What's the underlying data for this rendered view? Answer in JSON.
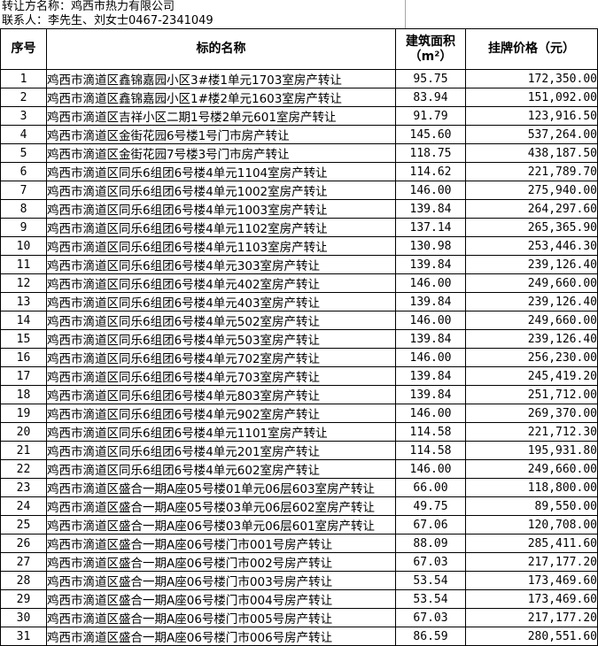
{
  "header": {
    "transferor": "转让方名称：鸡西市热力有限公司",
    "contact": "联系人：李先生、刘女士0467-2341049"
  },
  "table": {
    "headers": {
      "no": "序号",
      "name": "标的名称",
      "area_line1": "建筑面积",
      "area_line2": "（m²）",
      "price": "挂牌价格（元）"
    },
    "rows": [
      {
        "no": "1",
        "name": "鸡西市滴道区鑫锦嘉园小区3#楼1单元1703室房产转让",
        "area": "95.75",
        "price": "172,350.00"
      },
      {
        "no": "2",
        "name": "鸡西市滴道区鑫锦嘉园小区1#楼2单元1603室房产转让",
        "area": "83.94",
        "price": "151,092.00"
      },
      {
        "no": "3",
        "name": "鸡西市滴道区吉祥小区二期1号楼2单元601室房产转让",
        "area": "91.79",
        "price": "123,916.50"
      },
      {
        "no": "4",
        "name": "鸡西市滴道区金街花园6号楼1号门市房产转让",
        "area": "145.60",
        "price": "537,264.00"
      },
      {
        "no": "5",
        "name": "鸡西市滴道区金街花园7号楼3号门市房产转让",
        "area": "118.75",
        "price": "438,187.50"
      },
      {
        "no": "6",
        "name": "鸡西市滴道区同乐6组团6号楼4单元1104室房产转让",
        "area": "114.62",
        "price": "221,789.70"
      },
      {
        "no": "7",
        "name": "鸡西市滴道区同乐6组团6号楼4单元1002室房产转让",
        "area": "146.00",
        "price": "275,940.00"
      },
      {
        "no": "8",
        "name": "鸡西市滴道区同乐6组团6号楼4单元1003室房产转让",
        "area": "139.84",
        "price": "264,297.60"
      },
      {
        "no": "9",
        "name": "鸡西市滴道区同乐6组团6号楼4单元1102室房产转让",
        "area": "137.14",
        "price": "265,365.90"
      },
      {
        "no": "10",
        "name": "鸡西市滴道区同乐6组团6号楼4单元1103室房产转让",
        "area": "130.98",
        "price": "253,446.30"
      },
      {
        "no": "11",
        "name": "鸡西市滴道区同乐6组团6号楼4单元303室房产转让",
        "area": "139.84",
        "price": "239,126.40"
      },
      {
        "no": "12",
        "name": "鸡西市滴道区同乐6组团6号楼4单元402室房产转让",
        "area": "146.00",
        "price": "249,660.00"
      },
      {
        "no": "13",
        "name": "鸡西市滴道区同乐6组团6号楼4单元403室房产转让",
        "area": "139.84",
        "price": "239,126.40"
      },
      {
        "no": "14",
        "name": "鸡西市滴道区同乐6组团6号楼4单元502室房产转让",
        "area": "146.00",
        "price": "249,660.00"
      },
      {
        "no": "15",
        "name": "鸡西市滴道区同乐6组团6号楼4单元503室房产转让",
        "area": "139.84",
        "price": "239,126.40"
      },
      {
        "no": "16",
        "name": "鸡西市滴道区同乐6组团6号楼4单元702室房产转让",
        "area": "146.00",
        "price": "256,230.00"
      },
      {
        "no": "17",
        "name": "鸡西市滴道区同乐6组团6号楼4单元703室房产转让",
        "area": "139.84",
        "price": "245,419.20"
      },
      {
        "no": "18",
        "name": "鸡西市滴道区同乐6组团6号楼4单元803室房产转让",
        "area": "139.84",
        "price": "251,712.00"
      },
      {
        "no": "19",
        "name": "鸡西市滴道区同乐6组团6号楼4单元902室房产转让",
        "area": "146.00",
        "price": "269,370.00"
      },
      {
        "no": "20",
        "name": "鸡西市滴道区同乐6组团6号楼4单元1101室房产转让",
        "area": "114.58",
        "price": "221,712.30"
      },
      {
        "no": "21",
        "name": "鸡西市滴道区同乐6组团6号楼4单元201室房产转让",
        "area": "114.58",
        "price": "195,931.80"
      },
      {
        "no": "22",
        "name": "鸡西市滴道区同乐6组团6号楼4单元602室房产转让",
        "area": "146.00",
        "price": "249,660.00"
      },
      {
        "no": "23",
        "name": "鸡西市滴道区盛合一期A座05号楼01单元06层603室房产转让",
        "area": "66.00",
        "price": "118,800.00"
      },
      {
        "no": "24",
        "name": "鸡西市滴道区盛合一期A座05号楼03单元06层602室房产转让",
        "area": "49.75",
        "price": "89,550.00"
      },
      {
        "no": "25",
        "name": "鸡西市滴道区盛合一期A座06号楼03单元06层601室房产转让",
        "area": "67.06",
        "price": "120,708.00"
      },
      {
        "no": "26",
        "name": "鸡西市滴道区盛合一期A座06号楼门市001号房产转让",
        "area": "88.09",
        "price": "285,411.60"
      },
      {
        "no": "27",
        "name": "鸡西市滴道区盛合一期A座06号楼门市002号房产转让",
        "area": "67.03",
        "price": "217,177.20"
      },
      {
        "no": "28",
        "name": "鸡西市滴道区盛合一期A座06号楼门市003号房产转让",
        "area": "53.54",
        "price": "173,469.60"
      },
      {
        "no": "29",
        "name": "鸡西市滴道区盛合一期A座06号楼门市004号房产转让",
        "area": "53.54",
        "price": "173,469.60"
      },
      {
        "no": "30",
        "name": "鸡西市滴道区盛合一期A座06号楼门市005号房产转让",
        "area": "67.03",
        "price": "217,177.20"
      },
      {
        "no": "31",
        "name": "鸡西市滴道区盛合一期A座06号楼门市006号房产转让",
        "area": "86.59",
        "price": "280,551.60"
      }
    ]
  },
  "colors": {
    "background": "#ffffff",
    "text": "#000000",
    "table_border": "#000000",
    "spreadsheet_gridline": "#a6a6a6"
  }
}
